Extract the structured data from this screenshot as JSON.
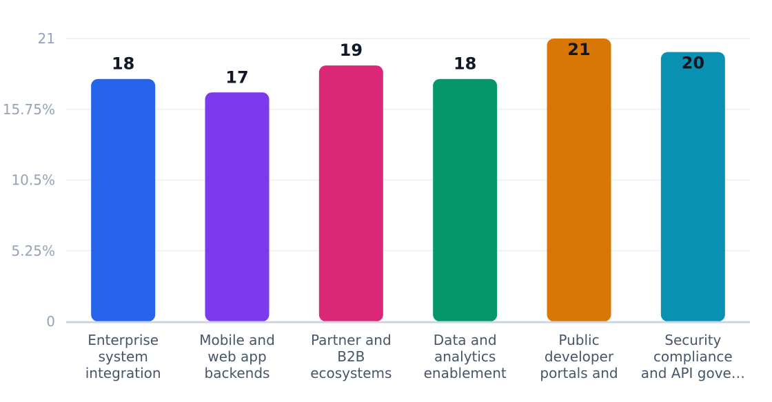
{
  "chart_data": {
    "type": "bar",
    "categories": [
      [
        "Enterprise",
        "system",
        "integration"
      ],
      [
        "Mobile and",
        "web app",
        "backends"
      ],
      [
        "Partner and",
        "B2B",
        "ecosystems"
      ],
      [
        "Data and",
        "analytics",
        "enablement"
      ],
      [
        "Public",
        "developer",
        "portals and"
      ],
      [
        "Security",
        "compliance",
        "and API gove…"
      ]
    ],
    "values": [
      18,
      17,
      19,
      18,
      21,
      20
    ],
    "value_labels": [
      "18",
      "17",
      "19",
      "18",
      "21",
      "20"
    ],
    "colors": [
      "#2563eb",
      "#7c3aed",
      "#db2777",
      "#059669",
      "#d97706",
      "#0891b2"
    ],
    "ylim": [
      0,
      21
    ],
    "yticks": [
      0,
      5.25,
      10.5,
      15.75,
      21
    ],
    "ytick_labels": [
      "0",
      "5.25%",
      "10.5%",
      "15.75%",
      "21"
    ],
    "grid": true,
    "title": "",
    "xlabel": "",
    "ylabel": ""
  }
}
